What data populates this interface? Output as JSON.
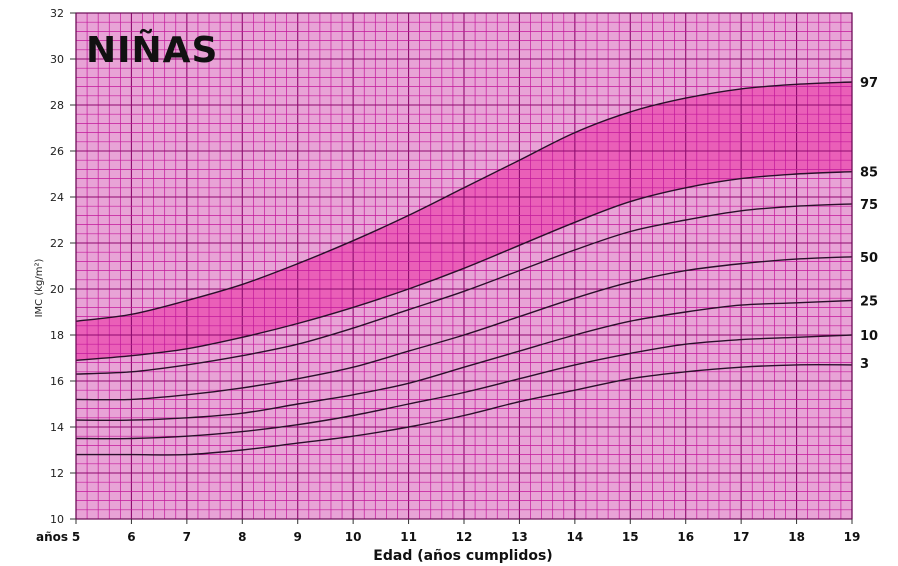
{
  "chart_data": {
    "type": "line",
    "title": "NIÑAS",
    "xlabel": "Edad (años cumplidos)",
    "xprefix": "años",
    "ylabel": "IMC (kg/m²)",
    "xlim": [
      5,
      19
    ],
    "ylim": [
      10,
      32
    ],
    "x_ticks": [
      "5",
      "6",
      "7",
      "8",
      "9",
      "10",
      "11",
      "12",
      "13",
      "14",
      "15",
      "16",
      "17",
      "18",
      "19"
    ],
    "y_ticks": [
      "10",
      "12",
      "14",
      "16",
      "18",
      "20",
      "22",
      "24",
      "26",
      "28",
      "30",
      "32"
    ],
    "grid": true,
    "shaded_band": [
      "85",
      "97"
    ],
    "colors": {
      "background": "#e8a3d6",
      "band": "#ea5fb8",
      "grid_minor": "#c2189a",
      "grid_major": "#8e0a6e",
      "line": "#2a0f2a"
    },
    "x": [
      5,
      6,
      7,
      8,
      9,
      10,
      11,
      12,
      13,
      14,
      15,
      16,
      17,
      18,
      19
    ],
    "series": [
      {
        "name": "97",
        "values": [
          18.6,
          18.9,
          19.5,
          20.2,
          21.1,
          22.1,
          23.2,
          24.4,
          25.6,
          26.8,
          27.7,
          28.3,
          28.7,
          28.9,
          29.0
        ]
      },
      {
        "name": "85",
        "values": [
          16.9,
          17.1,
          17.4,
          17.9,
          18.5,
          19.2,
          20.0,
          20.9,
          21.9,
          22.9,
          23.8,
          24.4,
          24.8,
          25.0,
          25.1
        ]
      },
      {
        "name": "75",
        "values": [
          16.3,
          16.4,
          16.7,
          17.1,
          17.6,
          18.3,
          19.1,
          19.9,
          20.8,
          21.7,
          22.5,
          23.0,
          23.4,
          23.6,
          23.7
        ]
      },
      {
        "name": "50",
        "values": [
          15.2,
          15.2,
          15.4,
          15.7,
          16.1,
          16.6,
          17.3,
          18.0,
          18.8,
          19.6,
          20.3,
          20.8,
          21.1,
          21.3,
          21.4
        ]
      },
      {
        "name": "25",
        "values": [
          14.3,
          14.3,
          14.4,
          14.6,
          15.0,
          15.4,
          15.9,
          16.6,
          17.3,
          18.0,
          18.6,
          19.0,
          19.3,
          19.4,
          19.5
        ]
      },
      {
        "name": "10",
        "values": [
          13.5,
          13.5,
          13.6,
          13.8,
          14.1,
          14.5,
          15.0,
          15.5,
          16.1,
          16.7,
          17.2,
          17.6,
          17.8,
          17.9,
          18.0
        ]
      },
      {
        "name": "3",
        "values": [
          12.8,
          12.8,
          12.8,
          13.0,
          13.3,
          13.6,
          14.0,
          14.5,
          15.1,
          15.6,
          16.1,
          16.4,
          16.6,
          16.7,
          16.7
        ]
      }
    ]
  }
}
